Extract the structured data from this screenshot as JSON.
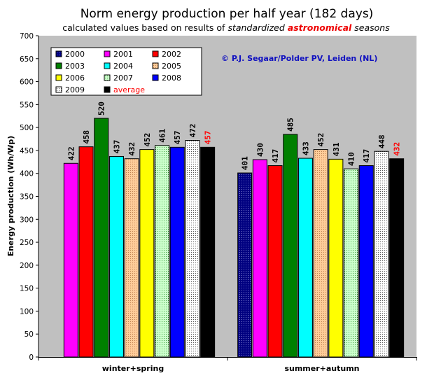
{
  "chart_data": {
    "type": "bar",
    "title": "Norm energy production per half year (182 days)",
    "subtitle_parts": [
      {
        "text": "calculated values based on results of ",
        "style": "normal"
      },
      {
        "text": "standardized",
        "style": "italic"
      },
      {
        "text": "astronomical",
        "style": "red"
      },
      {
        "text": " seasons",
        "style": "italic"
      }
    ],
    "ylabel": "Energy production (Wh/Wp)",
    "xlabel": "",
    "ylim": [
      0,
      700
    ],
    "yticks": [
      0,
      50,
      100,
      150,
      200,
      250,
      300,
      350,
      400,
      450,
      500,
      550,
      600,
      650,
      700
    ],
    "grid": false,
    "legend_position": "top-left",
    "credit": "© P.J. Segaar/Polder PV, Leiden (NL)",
    "categories": [
      "winter+spring",
      "summer+autumn"
    ],
    "series": [
      {
        "name": "2000",
        "values": [
          null,
          401
        ],
        "color": "#000080",
        "pattern": "dots"
      },
      {
        "name": "2001",
        "values": [
          422,
          430
        ],
        "color": "#ff00ff",
        "pattern": "solid"
      },
      {
        "name": "2002",
        "values": [
          458,
          417
        ],
        "color": "#ff0000",
        "pattern": "solid"
      },
      {
        "name": "2003",
        "values": [
          520,
          485
        ],
        "color": "#008000",
        "pattern": "solid"
      },
      {
        "name": "2004",
        "values": [
          437,
          433
        ],
        "color": "#00ffff",
        "pattern": "solid"
      },
      {
        "name": "2005",
        "values": [
          432,
          452
        ],
        "color": "#ffcc99",
        "pattern": "dots"
      },
      {
        "name": "2006",
        "values": [
          452,
          431
        ],
        "color": "#ffff00",
        "pattern": "solid"
      },
      {
        "name": "2007",
        "values": [
          461,
          410
        ],
        "color": "#ccffcc",
        "pattern": "dots"
      },
      {
        "name": "2008",
        "values": [
          457,
          417
        ],
        "color": "#0000ff",
        "pattern": "solid"
      },
      {
        "name": "2009",
        "values": [
          472,
          448
        ],
        "color": "#ffffff",
        "pattern": "dots"
      },
      {
        "name": "average",
        "values": [
          457,
          432
        ],
        "color": "#000000",
        "pattern": "solid",
        "label_color": "#ff0000"
      }
    ]
  }
}
